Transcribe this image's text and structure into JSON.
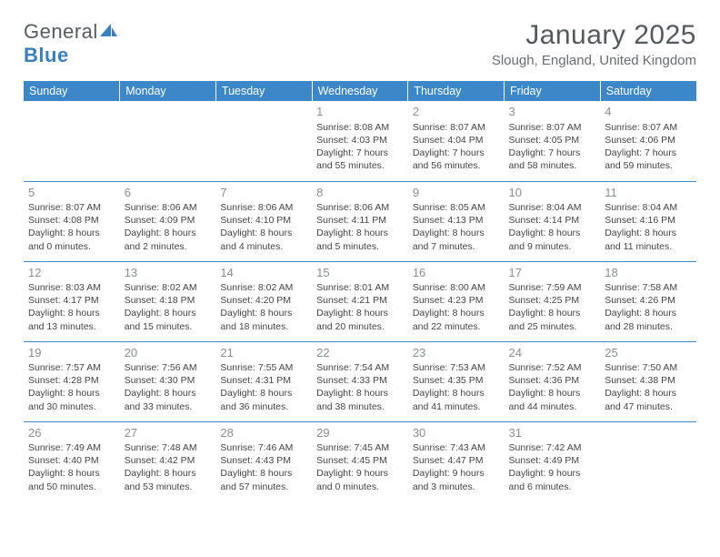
{
  "brand": {
    "name_gray": "General",
    "name_blue": "Blue",
    "sail_color": "#3a7fbf"
  },
  "title": "January 2025",
  "location": "Slough, England, United Kingdom",
  "colors": {
    "header_bg": "#3b87c8",
    "header_text": "#ffffff",
    "row_border": "#3b87c8",
    "daynum": "#8a8d90",
    "body_text": "#444444",
    "title_text": "#55595d",
    "location_text": "#6a6d70"
  },
  "day_headers": [
    "Sunday",
    "Monday",
    "Tuesday",
    "Wednesday",
    "Thursday",
    "Friday",
    "Saturday"
  ],
  "weeks": [
    [
      null,
      null,
      null,
      {
        "n": "1",
        "sunrise": "8:08 AM",
        "sunset": "4:03 PM",
        "day_h": "7",
        "day_m": "55"
      },
      {
        "n": "2",
        "sunrise": "8:07 AM",
        "sunset": "4:04 PM",
        "day_h": "7",
        "day_m": "56"
      },
      {
        "n": "3",
        "sunrise": "8:07 AM",
        "sunset": "4:05 PM",
        "day_h": "7",
        "day_m": "58"
      },
      {
        "n": "4",
        "sunrise": "8:07 AM",
        "sunset": "4:06 PM",
        "day_h": "7",
        "day_m": "59"
      }
    ],
    [
      {
        "n": "5",
        "sunrise": "8:07 AM",
        "sunset": "4:08 PM",
        "day_h": "8",
        "day_m": "0"
      },
      {
        "n": "6",
        "sunrise": "8:06 AM",
        "sunset": "4:09 PM",
        "day_h": "8",
        "day_m": "2"
      },
      {
        "n": "7",
        "sunrise": "8:06 AM",
        "sunset": "4:10 PM",
        "day_h": "8",
        "day_m": "4"
      },
      {
        "n": "8",
        "sunrise": "8:06 AM",
        "sunset": "4:11 PM",
        "day_h": "8",
        "day_m": "5"
      },
      {
        "n": "9",
        "sunrise": "8:05 AM",
        "sunset": "4:13 PM",
        "day_h": "8",
        "day_m": "7"
      },
      {
        "n": "10",
        "sunrise": "8:04 AM",
        "sunset": "4:14 PM",
        "day_h": "8",
        "day_m": "9"
      },
      {
        "n": "11",
        "sunrise": "8:04 AM",
        "sunset": "4:16 PM",
        "day_h": "8",
        "day_m": "11"
      }
    ],
    [
      {
        "n": "12",
        "sunrise": "8:03 AM",
        "sunset": "4:17 PM",
        "day_h": "8",
        "day_m": "13"
      },
      {
        "n": "13",
        "sunrise": "8:02 AM",
        "sunset": "4:18 PM",
        "day_h": "8",
        "day_m": "15"
      },
      {
        "n": "14",
        "sunrise": "8:02 AM",
        "sunset": "4:20 PM",
        "day_h": "8",
        "day_m": "18"
      },
      {
        "n": "15",
        "sunrise": "8:01 AM",
        "sunset": "4:21 PM",
        "day_h": "8",
        "day_m": "20"
      },
      {
        "n": "16",
        "sunrise": "8:00 AM",
        "sunset": "4:23 PM",
        "day_h": "8",
        "day_m": "22"
      },
      {
        "n": "17",
        "sunrise": "7:59 AM",
        "sunset": "4:25 PM",
        "day_h": "8",
        "day_m": "25"
      },
      {
        "n": "18",
        "sunrise": "7:58 AM",
        "sunset": "4:26 PM",
        "day_h": "8",
        "day_m": "28"
      }
    ],
    [
      {
        "n": "19",
        "sunrise": "7:57 AM",
        "sunset": "4:28 PM",
        "day_h": "8",
        "day_m": "30"
      },
      {
        "n": "20",
        "sunrise": "7:56 AM",
        "sunset": "4:30 PM",
        "day_h": "8",
        "day_m": "33"
      },
      {
        "n": "21",
        "sunrise": "7:55 AM",
        "sunset": "4:31 PM",
        "day_h": "8",
        "day_m": "36"
      },
      {
        "n": "22",
        "sunrise": "7:54 AM",
        "sunset": "4:33 PM",
        "day_h": "8",
        "day_m": "38"
      },
      {
        "n": "23",
        "sunrise": "7:53 AM",
        "sunset": "4:35 PM",
        "day_h": "8",
        "day_m": "41"
      },
      {
        "n": "24",
        "sunrise": "7:52 AM",
        "sunset": "4:36 PM",
        "day_h": "8",
        "day_m": "44"
      },
      {
        "n": "25",
        "sunrise": "7:50 AM",
        "sunset": "4:38 PM",
        "day_h": "8",
        "day_m": "47"
      }
    ],
    [
      {
        "n": "26",
        "sunrise": "7:49 AM",
        "sunset": "4:40 PM",
        "day_h": "8",
        "day_m": "50"
      },
      {
        "n": "27",
        "sunrise": "7:48 AM",
        "sunset": "4:42 PM",
        "day_h": "8",
        "day_m": "53"
      },
      {
        "n": "28",
        "sunrise": "7:46 AM",
        "sunset": "4:43 PM",
        "day_h": "8",
        "day_m": "57"
      },
      {
        "n": "29",
        "sunrise": "7:45 AM",
        "sunset": "4:45 PM",
        "day_h": "9",
        "day_m": "0"
      },
      {
        "n": "30",
        "sunrise": "7:43 AM",
        "sunset": "4:47 PM",
        "day_h": "9",
        "day_m": "3"
      },
      {
        "n": "31",
        "sunrise": "7:42 AM",
        "sunset": "4:49 PM",
        "day_h": "9",
        "day_m": "6"
      },
      null
    ]
  ],
  "labels": {
    "sunrise_prefix": "Sunrise: ",
    "sunset_prefix": "Sunset: ",
    "daylight_prefix": "Daylight: ",
    "hours_word": " hours",
    "and_word": "and ",
    "minutes_word": " minutes."
  }
}
